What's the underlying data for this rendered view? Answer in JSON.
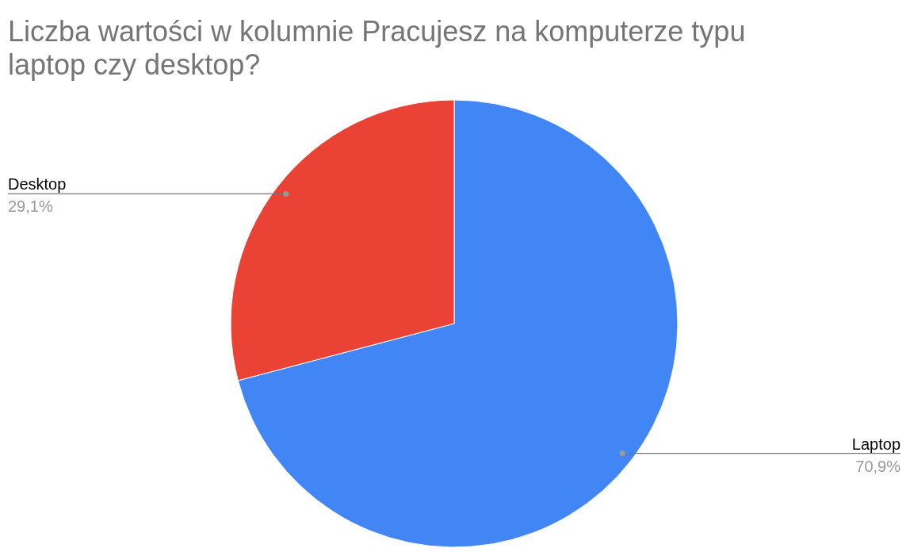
{
  "chart_data": {
    "type": "pie",
    "title": "Liczba wartości w kolumnie Pracujesz na komputerze typu laptop czy desktop?",
    "categories": [
      "Laptop",
      "Desktop"
    ],
    "values": [
      70.9,
      29.1
    ],
    "value_labels": [
      "70,9%",
      "29,1%"
    ],
    "colors": [
      "#4285f4",
      "#ea4335"
    ]
  }
}
